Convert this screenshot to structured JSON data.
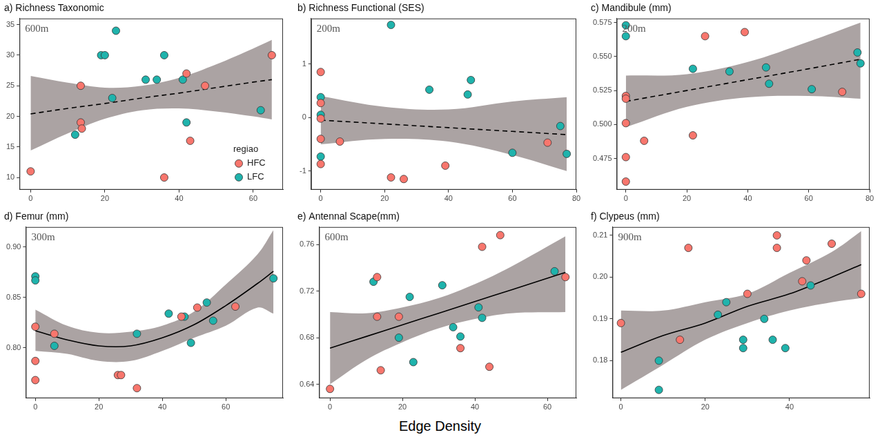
{
  "xlabel": "Edge Density",
  "chart_data": [
    {
      "type": "scatter",
      "title": "a) Richness Taxonomic",
      "annotation": "600m",
      "grid": false,
      "legend": "lower right",
      "legend_title": "regiao",
      "xlim": [
        -3,
        68
      ],
      "xticks": [
        0,
        20,
        40,
        60
      ],
      "ylim": [
        8,
        36
      ],
      "yticks": [
        10,
        15,
        20,
        25,
        30,
        35
      ],
      "series": [
        {
          "name": "HFC",
          "color": "#F8766D",
          "marker": "circle",
          "x": [
            0,
            13.5,
            13.5,
            13.8,
            36,
            42,
            43,
            47,
            65
          ],
          "values": [
            11,
            25,
            19,
            18,
            10,
            27,
            16,
            25,
            30
          ]
        },
        {
          "name": "LFC",
          "color": "#1FB3AC",
          "marker": "circle",
          "x": [
            12,
            19,
            20,
            22,
            23,
            31,
            34,
            36,
            41,
            42,
            62
          ],
          "values": [
            17,
            30,
            30,
            23,
            34,
            26,
            26,
            30,
            26,
            19,
            21
          ]
        }
      ],
      "fit": {
        "type": "line",
        "color": "#000000",
        "line_style": "dashed",
        "x": [
          0,
          10,
          20,
          30,
          40,
          50,
          60,
          65
        ],
        "values": [
          20.4,
          21.3,
          22.1,
          23.0,
          23.8,
          24.7,
          25.6,
          26.0
        ],
        "lower": [
          14.4,
          17.2,
          19.6,
          21.0,
          21.3,
          20.8,
          20.0,
          19.5
        ],
        "upper": [
          26.6,
          25.5,
          24.7,
          25.0,
          26.3,
          28.5,
          31.1,
          32.5
        ]
      }
    },
    {
      "type": "scatter",
      "title": "b) Richness Functional (SES)",
      "annotation": "200m",
      "grid": false,
      "xlim": [
        -3,
        80
      ],
      "xticks": [
        0,
        20,
        40,
        60,
        80
      ],
      "ylim": [
        -1.35,
        1.85
      ],
      "yticks": [
        -1,
        0,
        1
      ],
      "series": [
        {
          "name": "HFC",
          "color": "#F8766D",
          "marker": "circle",
          "x": [
            0,
            0,
            0,
            0,
            0,
            6,
            22,
            26,
            39,
            71
          ],
          "values": [
            0.85,
            0.27,
            -0.02,
            -0.4,
            -0.87,
            -0.45,
            -1.12,
            -1.15,
            -0.9,
            -0.47
          ]
        },
        {
          "name": "LFC",
          "color": "#1FB3AC",
          "marker": "circle",
          "x": [
            0,
            0,
            0,
            22,
            34,
            46,
            47,
            60,
            75,
            77
          ],
          "values": [
            0.38,
            0.05,
            -0.73,
            1.73,
            0.52,
            0.43,
            0.7,
            -0.66,
            -0.16,
            -0.68
          ]
        }
      ],
      "fit": {
        "type": "line",
        "color": "#000000",
        "line_style": "dashed",
        "x": [
          0,
          20,
          40,
          60,
          77
        ],
        "values": [
          -0.05,
          -0.12,
          -0.19,
          -0.26,
          -0.32
        ],
        "lower": [
          -0.5,
          -0.4,
          -0.45,
          -0.7,
          -1.0
        ],
        "upper": [
          0.4,
          0.2,
          0.15,
          0.3,
          0.38
        ]
      }
    },
    {
      "type": "scatter",
      "title": "c) Mandibule (mm)",
      "annotation": "200m",
      "grid": false,
      "xlim": [
        -3,
        80
      ],
      "xticks": [
        0,
        20,
        40,
        60,
        80
      ],
      "ylim": [
        0.452,
        0.578
      ],
      "yticks": [
        0.475,
        {
          "value": 0.5,
          "label": "0.500"
        },
        0.525,
        {
          "value": 0.55,
          "label": "0.550"
        },
        0.575
      ],
      "series": [
        {
          "name": "HFC",
          "color": "#F8766D",
          "marker": "circle",
          "x": [
            0,
            0,
            0,
            0,
            0,
            6,
            22,
            26,
            39,
            71
          ],
          "values": [
            0.521,
            0.519,
            0.501,
            0.476,
            0.458,
            0.488,
            0.492,
            0.565,
            0.568,
            0.524
          ]
        },
        {
          "name": "LFC",
          "color": "#1FB3AC",
          "marker": "circle",
          "x": [
            0,
            0,
            22,
            34,
            46,
            47,
            61,
            76,
            77
          ],
          "values": [
            0.573,
            0.565,
            0.541,
            0.539,
            0.542,
            0.53,
            0.526,
            0.553,
            0.545
          ]
        }
      ],
      "fit": {
        "type": "line",
        "color": "#000000",
        "line_style": "dashed",
        "x": [
          0,
          20,
          40,
          60,
          77
        ],
        "values": [
          0.517,
          0.525,
          0.533,
          0.541,
          0.548
        ],
        "lower": [
          0.498,
          0.513,
          0.52,
          0.521,
          0.519
        ],
        "upper": [
          0.536,
          0.537,
          0.546,
          0.561,
          0.575
        ]
      }
    },
    {
      "type": "scatter",
      "title": "d) Femur (mm)",
      "annotation": "300m",
      "grid": false,
      "xlim": [
        -3,
        78
      ],
      "xticks": [
        0,
        20,
        40,
        60
      ],
      "ylim": [
        0.75,
        0.92
      ],
      "yticks": [
        {
          "value": 0.8,
          "label": "0.80"
        },
        0.85,
        {
          "value": 0.9,
          "label": "0.90"
        }
      ],
      "series": [
        {
          "name": "HFC",
          "color": "#F8766D",
          "marker": "circle",
          "x": [
            0,
            0,
            0,
            6,
            26,
            27,
            32,
            46,
            51,
            63
          ],
          "values": [
            0.821,
            0.787,
            0.768,
            0.814,
            0.773,
            0.773,
            0.76,
            0.831,
            0.84,
            0.841
          ]
        },
        {
          "name": "LFC",
          "color": "#1FB3AC",
          "marker": "circle",
          "x": [
            0,
            0,
            6,
            32,
            42,
            47,
            49,
            54,
            56,
            75
          ],
          "values": [
            0.871,
            0.867,
            0.802,
            0.814,
            0.834,
            0.831,
            0.805,
            0.845,
            0.827,
            0.869
          ]
        }
      ],
      "fit": {
        "type": "line",
        "color": "#000000",
        "line_style": "solid",
        "x": [
          0,
          10,
          20,
          30,
          40,
          50,
          60,
          70,
          75
        ],
        "values": [
          0.817,
          0.808,
          0.802,
          0.802,
          0.81,
          0.823,
          0.842,
          0.864,
          0.876
        ],
        "lower": [
          0.797,
          0.794,
          0.787,
          0.787,
          0.797,
          0.81,
          0.822,
          0.84,
          0.834
        ],
        "upper": [
          0.838,
          0.822,
          0.815,
          0.816,
          0.822,
          0.836,
          0.863,
          0.893,
          0.917
        ]
      }
    },
    {
      "type": "scatter",
      "title": "e) Antennal Scape(mm)",
      "annotation": "600m",
      "grid": false,
      "xlim": [
        -3,
        68
      ],
      "xticks": [
        0,
        20,
        40,
        60
      ],
      "ylim": [
        0.628,
        0.775
      ],
      "yticks": [
        0.64,
        0.68,
        0.72,
        0.76
      ],
      "series": [
        {
          "name": "HFC",
          "color": "#F8766D",
          "marker": "circle",
          "x": [
            0,
            13,
            13,
            14,
            19,
            36,
            42,
            44,
            47,
            65
          ],
          "values": [
            0.636,
            0.732,
            0.698,
            0.652,
            0.698,
            0.671,
            0.758,
            0.655,
            0.768,
            0.732
          ]
        },
        {
          "name": "LFC",
          "color": "#1FB3AC",
          "marker": "circle",
          "x": [
            12,
            19,
            22,
            23,
            31,
            34,
            36,
            41,
            42,
            62
          ],
          "values": [
            0.728,
            0.68,
            0.715,
            0.659,
            0.725,
            0.689,
            0.681,
            0.706,
            0.697,
            0.737
          ]
        }
      ],
      "fit": {
        "type": "line",
        "color": "#000000",
        "line_style": "solid",
        "x": [
          0,
          10,
          20,
          30,
          40,
          50,
          65
        ],
        "values": [
          0.671,
          0.681,
          0.691,
          0.701,
          0.711,
          0.721,
          0.736
        ],
        "lower": [
          0.64,
          0.661,
          0.676,
          0.688,
          0.696,
          0.701,
          0.702
        ],
        "upper": [
          0.702,
          0.701,
          0.706,
          0.714,
          0.726,
          0.741,
          0.767
        ]
      }
    },
    {
      "type": "scatter",
      "title": "f) Clypeus (mm)",
      "annotation": "900m",
      "grid": false,
      "xlim": [
        -2,
        59
      ],
      "xticks": [
        0,
        20,
        40
      ],
      "ylim": [
        0.171,
        0.212
      ],
      "yticks": [
        0.18,
        0.19,
        {
          "value": 0.2,
          "label": "0.20"
        },
        0.21
      ],
      "series": [
        {
          "name": "HFC",
          "color": "#F8766D",
          "marker": "circle",
          "x": [
            0,
            14,
            16,
            30,
            37,
            37,
            43,
            44,
            50,
            57
          ],
          "values": [
            0.189,
            0.185,
            0.207,
            0.196,
            0.21,
            0.207,
            0.199,
            0.204,
            0.208,
            0.196
          ]
        },
        {
          "name": "LFC",
          "color": "#1FB3AC",
          "marker": "circle",
          "x": [
            9,
            9,
            23,
            25,
            29,
            29,
            34,
            36,
            39,
            45
          ],
          "values": [
            0.18,
            0.173,
            0.191,
            0.194,
            0.185,
            0.183,
            0.19,
            0.185,
            0.183,
            0.198
          ]
        }
      ],
      "fit": {
        "type": "line",
        "color": "#000000",
        "line_style": "solid",
        "x": [
          0,
          10,
          20,
          30,
          40,
          50,
          57
        ],
        "values": [
          0.182,
          0.186,
          0.189,
          0.193,
          0.196,
          0.2,
          0.203
        ],
        "lower": [
          0.173,
          0.179,
          0.185,
          0.189,
          0.192,
          0.194,
          0.195
        ],
        "upper": [
          0.192,
          0.192,
          0.194,
          0.196,
          0.201,
          0.206,
          0.211
        ]
      }
    }
  ]
}
